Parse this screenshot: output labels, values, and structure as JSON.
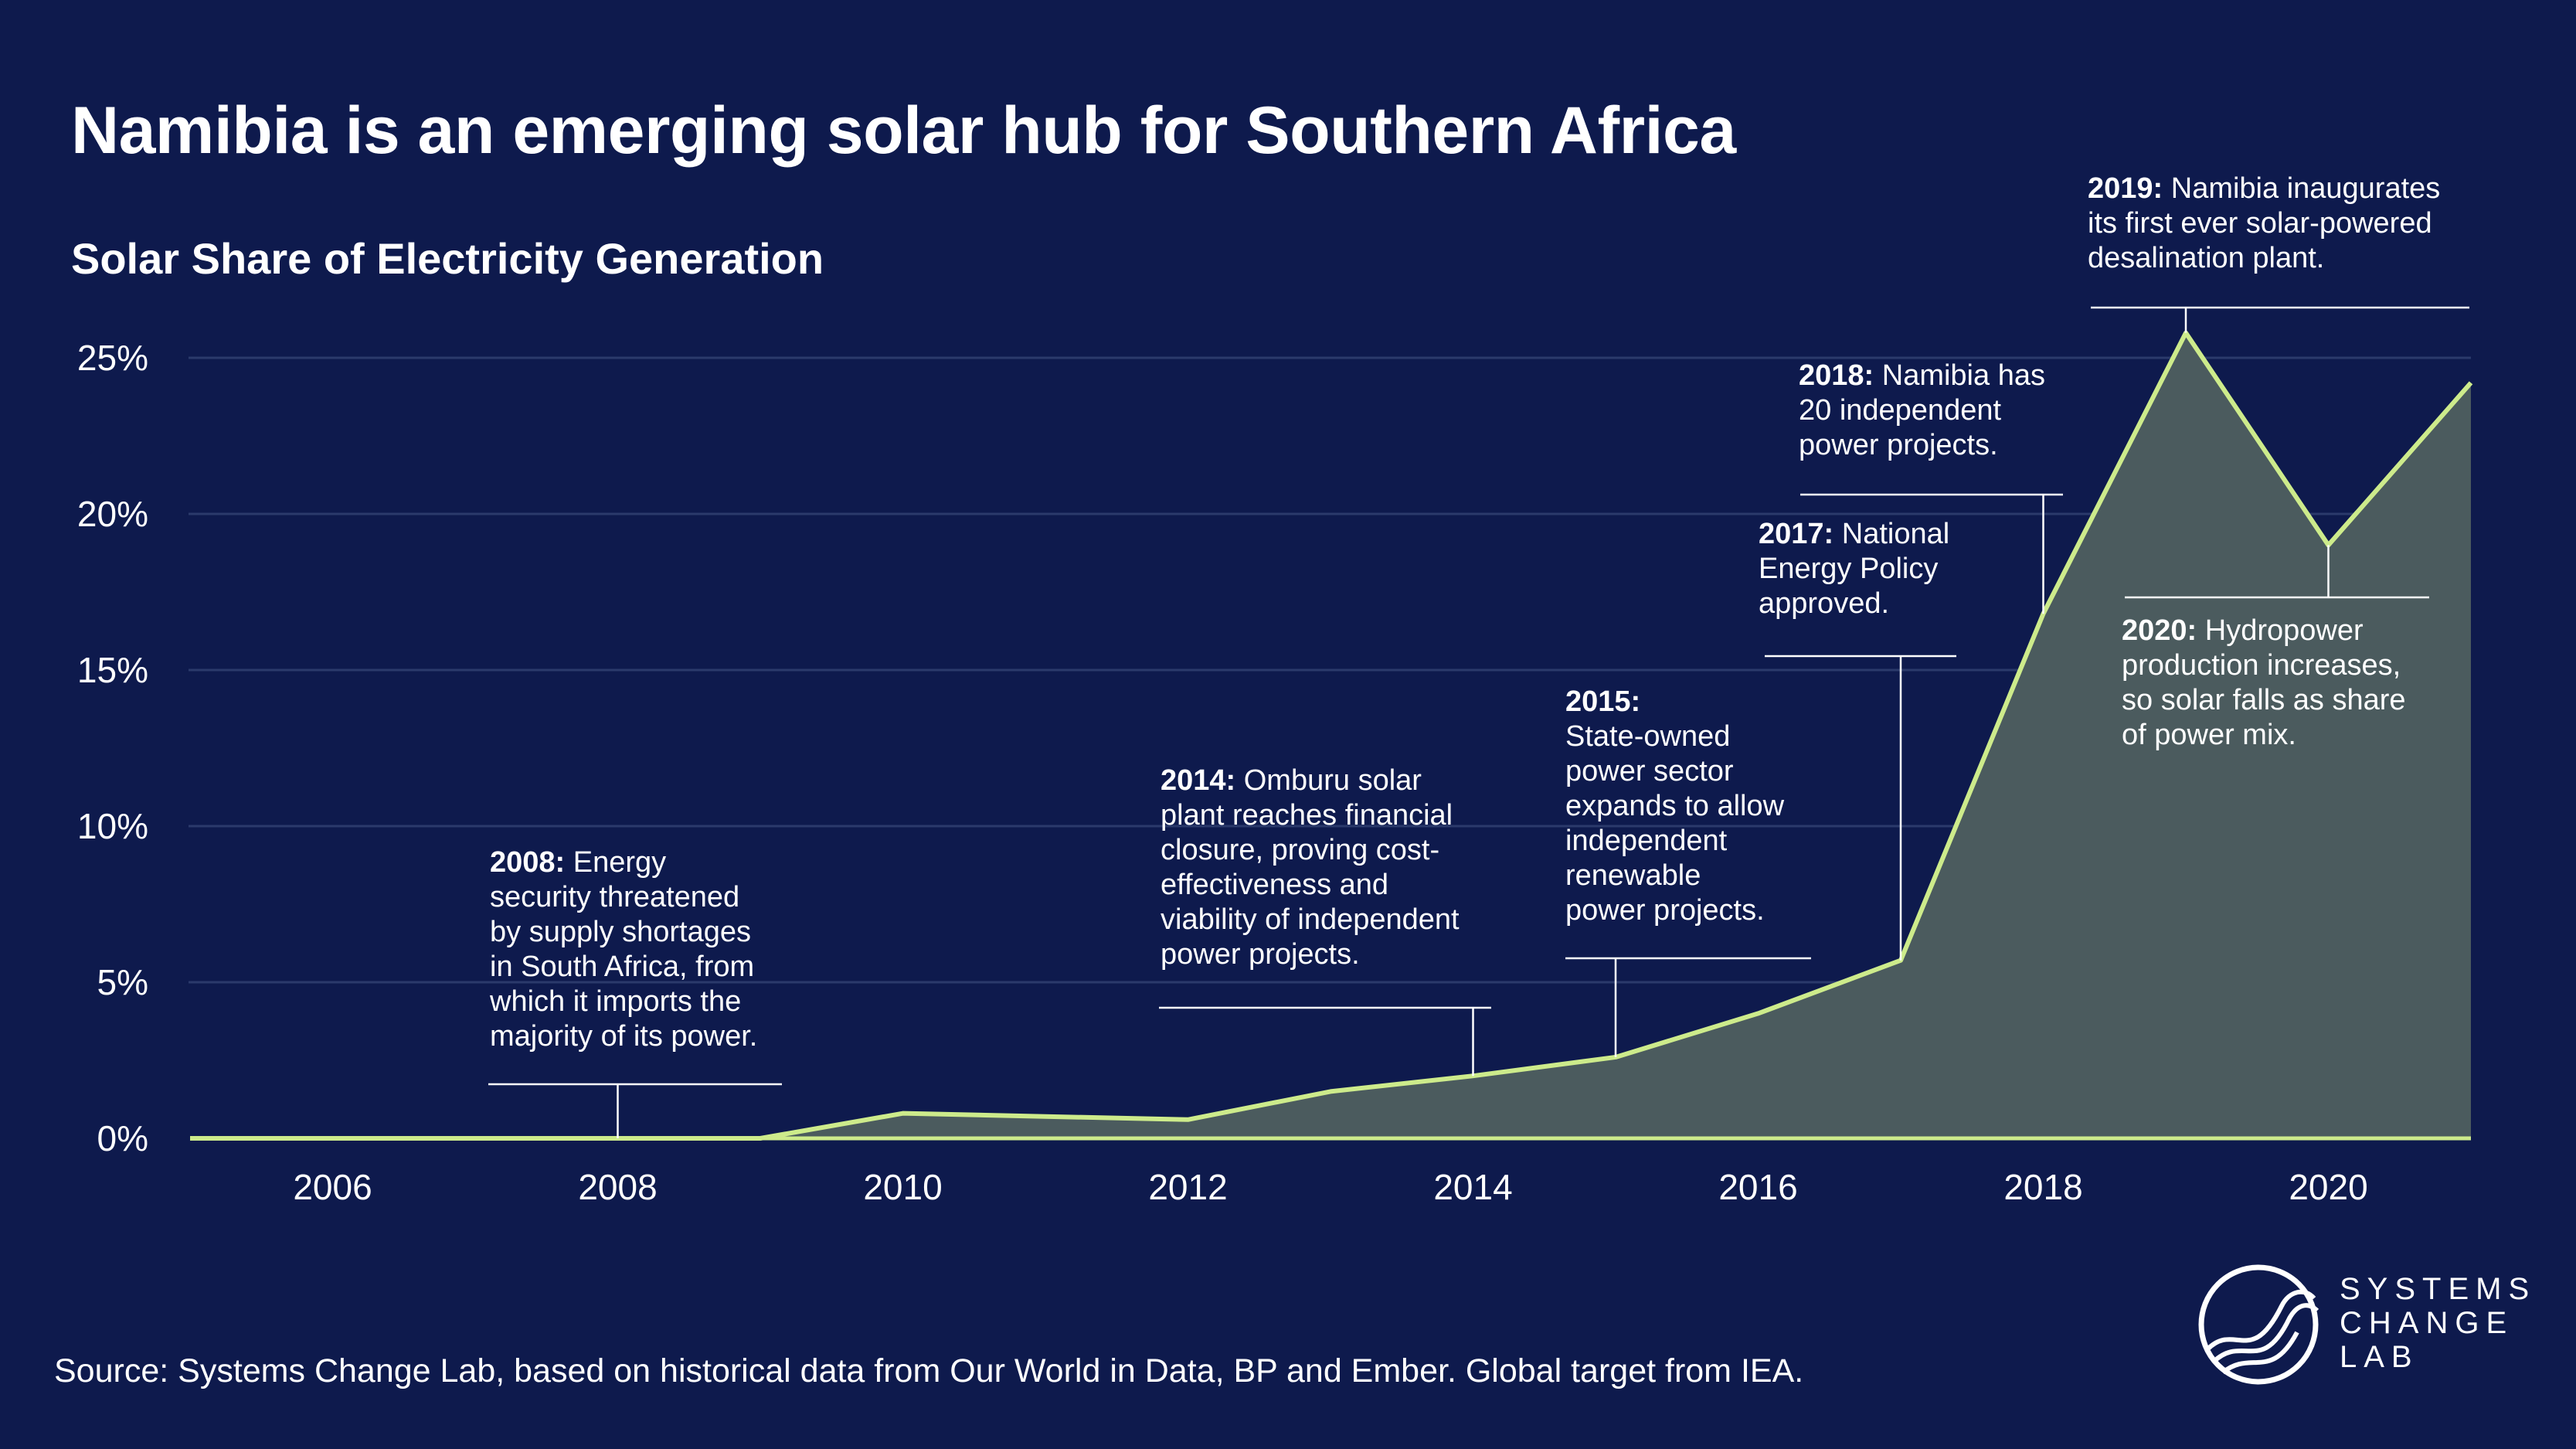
{
  "title": "Namibia is an emerging solar hub for Southern Africa",
  "source": "Source: Systems Change Lab, based on historical data from Our World in Data, BP and Ember. Global target from IEA.",
  "logo": {
    "lines": [
      "SYSTEMS",
      "CHANGE",
      "LAB"
    ]
  },
  "colors": {
    "background": "#0e1a4d",
    "line": "#cdeb8b",
    "area": "#4b5b5e",
    "grid": "#2b3a6b",
    "text": "#ffffff"
  },
  "chart_data": {
    "type": "area",
    "title": "Solar Share of Electricity Generation",
    "xlabel": "",
    "ylabel": "",
    "x": [
      2005,
      2006,
      2007,
      2008,
      2009,
      2010,
      2011,
      2012,
      2013,
      2014,
      2015,
      2016,
      2017,
      2018,
      2019,
      2020,
      2021
    ],
    "series": [
      {
        "name": "Solar share (%)",
        "values": [
          0,
          0,
          0,
          0,
          0,
          0.8,
          0.7,
          0.6,
          1.5,
          2.0,
          2.6,
          4.0,
          5.7,
          16.8,
          25.8,
          19.0,
          24.2
        ]
      }
    ],
    "xlim": [
      2005,
      2021
    ],
    "ylim": [
      0,
      25
    ],
    "xticks": [
      2006,
      2008,
      2010,
      2012,
      2014,
      2016,
      2018,
      2020
    ],
    "xtick_labels": [
      "2006",
      "2008",
      "2010",
      "2012",
      "2014",
      "2016",
      "2018",
      "2020"
    ],
    "yticks": [
      0,
      5,
      10,
      15,
      20,
      25
    ],
    "ytick_labels": [
      "0%",
      "5%",
      "10%",
      "15%",
      "20%",
      "25%"
    ],
    "grid": true,
    "annotations": [
      {
        "year": 2008,
        "bold": "2008:",
        "lines": [
          "Energy",
          "security threatened",
          "by supply shortages",
          "in South Africa, from",
          "which it imports the",
          "majority of its power."
        ]
      },
      {
        "year": 2014,
        "bold": "2014:",
        "lines": [
          "Omburu solar",
          "plant reaches financial",
          "closure, proving cost-",
          "effectiveness and",
          "viability of independent",
          "power projects."
        ]
      },
      {
        "year": 2015,
        "bold": "2015:",
        "lines": [
          "",
          "State-owned",
          "power sector",
          "expands to allow",
          "independent",
          "renewable",
          "power projects."
        ]
      },
      {
        "year": 2017,
        "bold": "2017:",
        "lines": [
          "National",
          "Energy Policy",
          "approved."
        ]
      },
      {
        "year": 2018,
        "bold": "2018:",
        "lines": [
          "Namibia has",
          "20 independent",
          "power projects."
        ]
      },
      {
        "year": 2019,
        "bold": "2019:",
        "lines": [
          "Namibia inaugurates",
          "its first ever solar-powered",
          "desalination plant."
        ]
      },
      {
        "year": 2020,
        "bold": "2020:",
        "lines": [
          "Hydropower",
          "production increases,",
          "so solar falls as share",
          "of power mix."
        ]
      }
    ]
  }
}
